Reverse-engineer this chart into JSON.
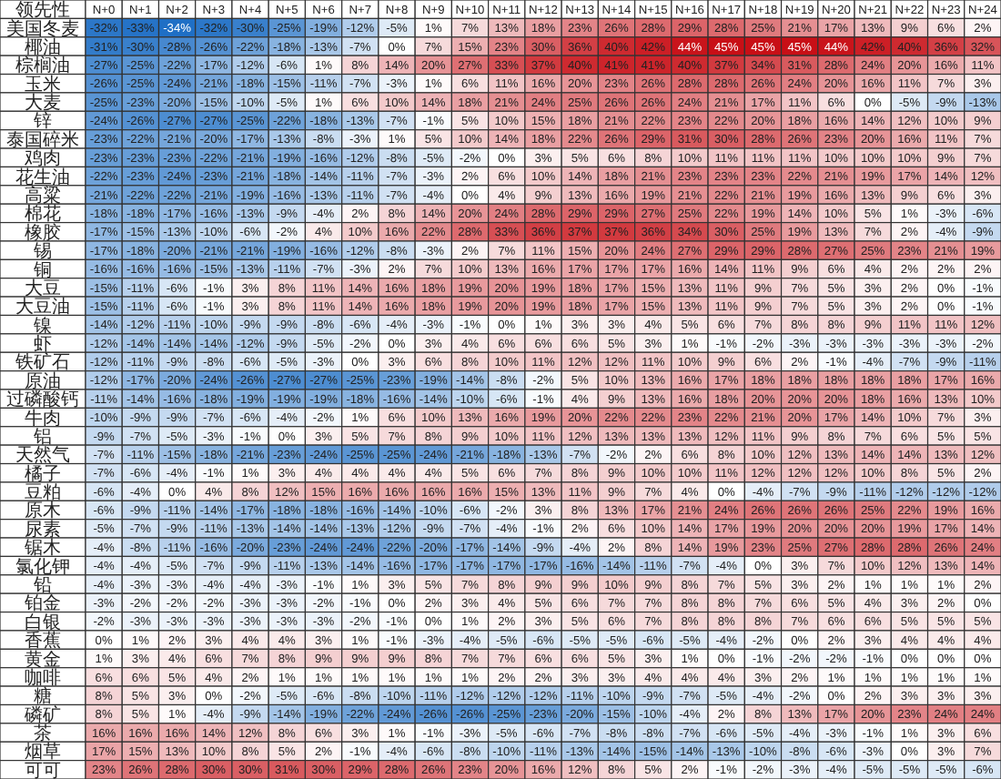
{
  "chart_data": {
    "type": "heatmap",
    "ylabel": "领先性",
    "categories": [
      "N+0",
      "N+1",
      "N+2",
      "N+3",
      "N+4",
      "N+5",
      "N+6",
      "N+7",
      "N+8",
      "N+9",
      "N+10",
      "N+11",
      "N+12",
      "N+13",
      "N+14",
      "N+15",
      "N+16",
      "N+17",
      "N+18",
      "N+19",
      "N+20",
      "N+21",
      "N+22",
      "N+23",
      "N+24"
    ],
    "y_categories": [
      "美国冬麦",
      "椰油",
      "棕榈油",
      "玉米",
      "大麦",
      "锌",
      "泰国碎米",
      "鸡肉",
      "花生油",
      "高粱",
      "棉花",
      "橡胶",
      "锡",
      "铜",
      "大豆",
      "大豆油",
      "镍",
      "虾",
      "铁矿石",
      "原油",
      "过磷酸钙",
      "牛肉",
      "铝",
      "天然气",
      "橘子",
      "豆粕",
      "原木",
      "尿素",
      "锯木",
      "氯化钾",
      "铅",
      "铂金",
      "白银",
      "香蕉",
      "黄金",
      "咖啡",
      "糖",
      "磷矿",
      "茶",
      "烟草",
      "可可"
    ],
    "cells": [
      [
        -32,
        -33,
        -34,
        -32,
        -30,
        -25,
        -19,
        -12,
        -5,
        1,
        7,
        13,
        18,
        23,
        26,
        28,
        29,
        28,
        25,
        21,
        17,
        13,
        9,
        6,
        2
      ],
      [
        -31,
        -30,
        -28,
        -26,
        -22,
        -18,
        -13,
        -7,
        0,
        7,
        15,
        23,
        30,
        36,
        40,
        42,
        44,
        45,
        45,
        45,
        44,
        42,
        40,
        36,
        32
      ],
      [
        -27,
        -25,
        -22,
        -17,
        -12,
        -6,
        1,
        8,
        14,
        20,
        27,
        33,
        37,
        40,
        41,
        41,
        40,
        37,
        34,
        31,
        28,
        24,
        20,
        16,
        11
      ],
      [
        -26,
        -25,
        -24,
        -21,
        -18,
        -15,
        -11,
        -7,
        -3,
        1,
        6,
        11,
        16,
        20,
        23,
        26,
        28,
        28,
        26,
        24,
        20,
        16,
        11,
        7,
        3
      ],
      [
        -25,
        -23,
        -20,
        -15,
        -10,
        -5,
        1,
        6,
        10,
        14,
        18,
        21,
        24,
        25,
        26,
        26,
        24,
        21,
        17,
        11,
        6,
        0,
        -5,
        -9,
        -13
      ],
      [
        -24,
        -26,
        -27,
        -27,
        -25,
        -22,
        -18,
        -13,
        -7,
        -1,
        5,
        10,
        15,
        18,
        21,
        22,
        23,
        22,
        20,
        18,
        16,
        14,
        12,
        10,
        9
      ],
      [
        -23,
        -22,
        -21,
        -20,
        -17,
        -13,
        -8,
        -3,
        1,
        5,
        10,
        14,
        18,
        22,
        26,
        29,
        31,
        30,
        28,
        26,
        23,
        20,
        16,
        11,
        7
      ],
      [
        -23,
        -23,
        -23,
        -22,
        -21,
        -19,
        -16,
        -12,
        -8,
        -5,
        -2,
        0,
        3,
        5,
        6,
        8,
        10,
        11,
        11,
        11,
        10,
        10,
        10,
        9,
        7
      ],
      [
        -22,
        -23,
        -24,
        -23,
        -21,
        -18,
        -14,
        -11,
        -7,
        -3,
        2,
        6,
        10,
        14,
        18,
        21,
        23,
        23,
        23,
        22,
        21,
        19,
        17,
        14,
        12
      ],
      [
        -21,
        -22,
        -22,
        -21,
        -19,
        -16,
        -13,
        -11,
        -7,
        -4,
        0,
        4,
        9,
        13,
        16,
        19,
        21,
        22,
        21,
        19,
        16,
        13,
        9,
        6,
        3
      ],
      [
        -18,
        -18,
        -17,
        -16,
        -13,
        -9,
        -4,
        2,
        8,
        14,
        20,
        24,
        28,
        29,
        29,
        27,
        25,
        22,
        19,
        14,
        10,
        5,
        1,
        -3,
        -6
      ],
      [
        -17,
        -15,
        -13,
        -10,
        -6,
        -2,
        4,
        10,
        16,
        22,
        28,
        33,
        36,
        37,
        37,
        36,
        34,
        30,
        25,
        19,
        13,
        7,
        2,
        -4,
        -9
      ],
      [
        -17,
        -18,
        -20,
        -21,
        -21,
        -19,
        -16,
        -12,
        -8,
        -3,
        2,
        7,
        11,
        15,
        20,
        24,
        27,
        29,
        29,
        28,
        27,
        25,
        23,
        21,
        19
      ],
      [
        -16,
        -16,
        -16,
        -15,
        -13,
        -11,
        -7,
        -3,
        2,
        7,
        10,
        13,
        16,
        17,
        17,
        17,
        16,
        14,
        11,
        9,
        6,
        4,
        2,
        2,
        2
      ],
      [
        -15,
        -11,
        -6,
        -1,
        3,
        8,
        11,
        14,
        16,
        18,
        19,
        20,
        19,
        18,
        17,
        15,
        13,
        11,
        9,
        7,
        5,
        3,
        2,
        0,
        -1
      ],
      [
        -15,
        -11,
        -6,
        -1,
        3,
        8,
        11,
        14,
        16,
        18,
        19,
        20,
        19,
        18,
        17,
        15,
        13,
        11,
        9,
        7,
        5,
        3,
        2,
        0,
        -1
      ],
      [
        -14,
        -12,
        -11,
        -10,
        -9,
        -9,
        -8,
        -6,
        -4,
        -3,
        -1,
        0,
        1,
        3,
        3,
        4,
        5,
        6,
        7,
        8,
        8,
        9,
        11,
        11,
        12
      ],
      [
        -12,
        -14,
        -14,
        -14,
        -12,
        -9,
        -5,
        -2,
        0,
        3,
        4,
        6,
        6,
        6,
        5,
        3,
        1,
        -1,
        -2,
        -3,
        -3,
        -3,
        -3,
        -3,
        -2
      ],
      [
        -12,
        -11,
        -9,
        -8,
        -6,
        -5,
        -3,
        0,
        3,
        6,
        8,
        10,
        11,
        12,
        12,
        11,
        10,
        9,
        6,
        2,
        -1,
        -4,
        -7,
        -9,
        -11
      ],
      [
        -12,
        -17,
        -20,
        -24,
        -26,
        -27,
        -27,
        -25,
        -23,
        -19,
        -14,
        -8,
        -2,
        5,
        10,
        13,
        16,
        17,
        18,
        18,
        18,
        18,
        18,
        17,
        16
      ],
      [
        -11,
        -14,
        -16,
        -18,
        -19,
        -19,
        -19,
        -18,
        -16,
        -14,
        -10,
        -6,
        -1,
        4,
        9,
        13,
        16,
        18,
        20,
        20,
        20,
        18,
        16,
        13,
        10
      ],
      [
        -10,
        -9,
        -9,
        -7,
        -6,
        -4,
        -2,
        1,
        6,
        10,
        13,
        16,
        19,
        20,
        22,
        22,
        23,
        22,
        21,
        20,
        17,
        14,
        10,
        7,
        3
      ],
      [
        -9,
        -7,
        -5,
        -3,
        -1,
        0,
        3,
        5,
        7,
        8,
        9,
        10,
        11,
        12,
        13,
        13,
        13,
        12,
        11,
        9,
        8,
        7,
        6,
        5,
        5
      ],
      [
        -7,
        -11,
        -15,
        -18,
        -21,
        -23,
        -24,
        -25,
        -25,
        -24,
        -21,
        -18,
        -13,
        -7,
        -2,
        2,
        6,
        8,
        10,
        12,
        13,
        14,
        14,
        13,
        12
      ],
      [
        -7,
        -6,
        -4,
        -1,
        1,
        3,
        4,
        4,
        4,
        4,
        5,
        6,
        7,
        8,
        9,
        10,
        10,
        11,
        12,
        12,
        12,
        10,
        8,
        5,
        2
      ],
      [
        -6,
        -4,
        0,
        4,
        8,
        12,
        15,
        16,
        16,
        16,
        16,
        15,
        13,
        11,
        9,
        7,
        4,
        0,
        -4,
        -7,
        -9,
        -11,
        -12,
        -12,
        -12
      ],
      [
        -6,
        -9,
        -11,
        -14,
        -17,
        -18,
        -18,
        -16,
        -14,
        -10,
        -6,
        -2,
        3,
        8,
        13,
        17,
        21,
        24,
        26,
        26,
        26,
        25,
        22,
        19,
        16
      ],
      [
        -5,
        -7,
        -9,
        -11,
        -13,
        -14,
        -14,
        -13,
        -12,
        -9,
        -7,
        -4,
        -1,
        2,
        6,
        10,
        14,
        17,
        19,
        20,
        20,
        20,
        19,
        17,
        14
      ],
      [
        -4,
        -8,
        -11,
        -16,
        -20,
        -23,
        -24,
        -24,
        -22,
        -20,
        -17,
        -14,
        -9,
        -4,
        2,
        8,
        14,
        19,
        23,
        25,
        27,
        28,
        28,
        26,
        24
      ],
      [
        -4,
        -4,
        -5,
        -7,
        -9,
        -11,
        -13,
        -14,
        -16,
        -17,
        -17,
        -17,
        -17,
        -16,
        -14,
        -11,
        -7,
        -4,
        0,
        3,
        7,
        10,
        12,
        13,
        14
      ],
      [
        -4,
        -3,
        -3,
        -4,
        -4,
        -3,
        -1,
        1,
        3,
        5,
        7,
        8,
        9,
        9,
        10,
        9,
        8,
        7,
        5,
        3,
        2,
        1,
        1,
        1,
        2
      ],
      [
        -3,
        -2,
        -2,
        -2,
        -3,
        -3,
        -2,
        -1,
        0,
        2,
        3,
        4,
        5,
        6,
        7,
        7,
        8,
        8,
        7,
        6,
        5,
        4,
        3,
        2,
        0
      ],
      [
        -2,
        -3,
        -3,
        -3,
        -3,
        -3,
        -3,
        -2,
        -1,
        0,
        1,
        2,
        3,
        5,
        6,
        7,
        8,
        8,
        8,
        7,
        6,
        6,
        5,
        5,
        5
      ],
      [
        0,
        1,
        2,
        3,
        4,
        4,
        3,
        1,
        -1,
        -3,
        -4,
        -5,
        -6,
        -5,
        -5,
        -6,
        -5,
        -4,
        -2,
        0,
        2,
        3,
        4,
        4,
        4
      ],
      [
        1,
        3,
        4,
        6,
        7,
        8,
        9,
        9,
        9,
        8,
        7,
        7,
        6,
        6,
        5,
        3,
        1,
        0,
        -1,
        -2,
        -2,
        -1,
        0,
        0,
        0
      ],
      [
        6,
        6,
        5,
        4,
        2,
        1,
        1,
        1,
        1,
        1,
        1,
        2,
        2,
        3,
        3,
        4,
        4,
        4,
        3,
        2,
        1,
        1,
        1,
        1,
        1
      ],
      [
        8,
        5,
        3,
        0,
        -2,
        -5,
        -6,
        -8,
        -10,
        -11,
        -12,
        -12,
        -12,
        -11,
        -10,
        -9,
        -7,
        -5,
        -4,
        -2,
        0,
        2,
        3,
        3,
        3
      ],
      [
        8,
        5,
        1,
        -4,
        -9,
        -14,
        -19,
        -22,
        -24,
        -26,
        -26,
        -25,
        -23,
        -20,
        -15,
        -10,
        -4,
        2,
        8,
        13,
        17,
        20,
        23,
        24,
        24
      ],
      [
        16,
        16,
        16,
        14,
        12,
        8,
        6,
        3,
        1,
        -1,
        -3,
        -5,
        -6,
        -7,
        -8,
        -8,
        -7,
        -6,
        -5,
        -4,
        -3,
        -1,
        1,
        3,
        6
      ],
      [
        17,
        15,
        13,
        10,
        8,
        5,
        2,
        -1,
        -4,
        -6,
        -8,
        -10,
        -11,
        -13,
        -14,
        -15,
        -14,
        -13,
        -10,
        -8,
        -6,
        -3,
        0,
        3,
        7
      ],
      [
        23,
        26,
        28,
        30,
        30,
        31,
        30,
        29,
        28,
        26,
        23,
        20,
        16,
        12,
        8,
        5,
        2,
        -1,
        -2,
        -3,
        -4,
        -5,
        -5,
        -5,
        -6
      ]
    ],
    "cell_labels": [
      [
        "-32%",
        "-33%",
        "-34%",
        "-32%",
        "-30%",
        "-25%",
        "-19%",
        "-12%",
        "-5%",
        "1%",
        "7%",
        "13%",
        "18%",
        "23%",
        "26%",
        "28%",
        "29%",
        "28%",
        "25%",
        "21%",
        "17%",
        "13%",
        "9%",
        "6%",
        "2%"
      ],
      [
        "-31%",
        "-30%",
        "-28%",
        "-26%",
        "-22%",
        "-18%",
        "-13%",
        "-7%",
        "0%",
        "7%",
        "15%",
        "23%",
        "30%",
        "36%",
        "40%",
        "42%",
        "44%",
        "45%",
        "45%",
        "45%",
        "44%",
        "42%",
        "40%",
        "36%",
        "32%"
      ],
      [
        "-27%",
        "-25%",
        "-22%",
        "-17%",
        "-12%",
        "-6%",
        "1%",
        "8%",
        "14%",
        "20%",
        "27%",
        "33%",
        "37%",
        "40%",
        "41%",
        "41%",
        "40%",
        "37%",
        "34%",
        "31%",
        "28%",
        "24%",
        "20%",
        "16%",
        "11%"
      ],
      [
        "-26%",
        "-25%",
        "-24%",
        "-21%",
        "-18%",
        "-15%",
        "-11%",
        "-7%",
        "-3%",
        "1%",
        "6%",
        "11%",
        "16%",
        "20%",
        "23%",
        "26%",
        "28%",
        "28%",
        "26%",
        "24%",
        "20%",
        "16%",
        "11%",
        "7%",
        "3%"
      ],
      [
        "-25%",
        "-23%",
        "-20%",
        "-15%",
        "-10%",
        "-5%",
        "1%",
        "6%",
        "10%",
        "14%",
        "18%",
        "21%",
        "24%",
        "25%",
        "26%",
        "26%",
        "24%",
        "21%",
        "17%",
        "11%",
        "6%",
        "0%",
        "-5%",
        "-9%",
        "-13%"
      ],
      [
        "-24%",
        "-26%",
        "-27%",
        "-27%",
        "-25%",
        "-22%",
        "-18%",
        "-13%",
        "-7%",
        "-1%",
        "5%",
        "10%",
        "15%",
        "18%",
        "21%",
        "22%",
        "23%",
        "22%",
        "20%",
        "18%",
        "16%",
        "14%",
        "12%",
        "10%",
        "9%"
      ],
      [
        "-23%",
        "-22%",
        "-21%",
        "-20%",
        "-17%",
        "-13%",
        "-8%",
        "-3%",
        "1%",
        "5%",
        "10%",
        "14%",
        "18%",
        "22%",
        "26%",
        "29%",
        "31%",
        "30%",
        "28%",
        "26%",
        "23%",
        "20%",
        "16%",
        "11%",
        "7%"
      ],
      [
        "-23%",
        "-23%",
        "-23%",
        "-22%",
        "-21%",
        "-19%",
        "-16%",
        "-12%",
        "-8%",
        "-5%",
        "-2%",
        "0%",
        "3%",
        "5%",
        "6%",
        "8%",
        "10%",
        "11%",
        "11%",
        "11%",
        "10%",
        "10%",
        "10%",
        "9%",
        "7%"
      ],
      [
        "-22%",
        "-23%",
        "-24%",
        "-23%",
        "-21%",
        "-18%",
        "-14%",
        "-11%",
        "-7%",
        "-3%",
        "2%",
        "6%",
        "10%",
        "14%",
        "18%",
        "21%",
        "23%",
        "23%",
        "23%",
        "22%",
        "21%",
        "19%",
        "17%",
        "14%",
        "12%"
      ],
      [
        "-21%",
        "-22%",
        "-22%",
        "-21%",
        "-19%",
        "-16%",
        "-13%",
        "-11%",
        "-7%",
        "-4%",
        "0%",
        "4%",
        "9%",
        "13%",
        "16%",
        "19%",
        "21%",
        "22%",
        "21%",
        "19%",
        "16%",
        "13%",
        "9%",
        "6%",
        "3%"
      ],
      [
        "-18%",
        "-18%",
        "-17%",
        "-16%",
        "-13%",
        "-9%",
        "-4%",
        "2%",
        "8%",
        "14%",
        "20%",
        "24%",
        "28%",
        "29%",
        "29%",
        "27%",
        "25%",
        "22%",
        "19%",
        "14%",
        "10%",
        "5%",
        "1%",
        "-3%",
        "-6%"
      ],
      [
        "-17%",
        "-15%",
        "-13%",
        "-10%",
        "-6%",
        "-2%",
        "4%",
        "10%",
        "16%",
        "22%",
        "28%",
        "33%",
        "36%",
        "37%",
        "37%",
        "36%",
        "34%",
        "30%",
        "25%",
        "19%",
        "13%",
        "7%",
        "2%",
        "-4%",
        "-9%"
      ],
      [
        "-17%",
        "-18%",
        "-20%",
        "-21%",
        "-21%",
        "-19%",
        "-16%",
        "-12%",
        "-8%",
        "-3%",
        "2%",
        "7%",
        "11%",
        "15%",
        "20%",
        "24%",
        "27%",
        "29%",
        "29%",
        "28%",
        "27%",
        "25%",
        "23%",
        "21%",
        "19%"
      ],
      [
        "-16%",
        "-16%",
        "-16%",
        "-15%",
        "-13%",
        "-11%",
        "-7%",
        "-3%",
        "2%",
        "7%",
        "10%",
        "13%",
        "16%",
        "17%",
        "17%",
        "17%",
        "16%",
        "14%",
        "11%",
        "9%",
        "6%",
        "4%",
        "2%",
        "2%",
        "2%"
      ],
      [
        "-15%",
        "-11%",
        "-6%",
        "-1%",
        "3%",
        "8%",
        "11%",
        "14%",
        "16%",
        "18%",
        "19%",
        "20%",
        "19%",
        "18%",
        "17%",
        "15%",
        "13%",
        "11%",
        "9%",
        "7%",
        "5%",
        "3%",
        "2%",
        "0%",
        "-1%"
      ],
      [
        "-15%",
        "-11%",
        "-6%",
        "-1%",
        "3%",
        "8%",
        "11%",
        "14%",
        "16%",
        "18%",
        "19%",
        "20%",
        "19%",
        "18%",
        "17%",
        "15%",
        "13%",
        "11%",
        "9%",
        "7%",
        "5%",
        "3%",
        "2%",
        "0%",
        "-1%"
      ],
      [
        "-14%",
        "-12%",
        "-11%",
        "-10%",
        "-9%",
        "-9%",
        "-8%",
        "-6%",
        "-4%",
        "-3%",
        "-1%",
        "0%",
        "1%",
        "3%",
        "3%",
        "4%",
        "5%",
        "6%",
        "7%",
        "8%",
        "8%",
        "9%",
        "11%",
        "11%",
        "12%"
      ],
      [
        "-12%",
        "-14%",
        "-14%",
        "-14%",
        "-12%",
        "-9%",
        "-5%",
        "-2%",
        "0%",
        "3%",
        "4%",
        "6%",
        "6%",
        "6%",
        "5%",
        "3%",
        "1%",
        "-1%",
        "-2%",
        "-3%",
        "-3%",
        "-3%",
        "-3%",
        "-3%",
        "-2%"
      ],
      [
        "-12%",
        "-11%",
        "-9%",
        "-8%",
        "-6%",
        "-5%",
        "-3%",
        "0%",
        "3%",
        "6%",
        "8%",
        "10%",
        "11%",
        "12%",
        "12%",
        "11%",
        "10%",
        "9%",
        "6%",
        "2%",
        "-1%",
        "-4%",
        "-7%",
        "-9%",
        "-11%"
      ],
      [
        "-12%",
        "-17%",
        "-20%",
        "-24%",
        "-26%",
        "-27%",
        "-27%",
        "-25%",
        "-23%",
        "-19%",
        "-14%",
        "-8%",
        "-2%",
        "5%",
        "10%",
        "13%",
        "16%",
        "17%",
        "18%",
        "18%",
        "18%",
        "18%",
        "18%",
        "17%",
        "16%"
      ],
      [
        "-11%",
        "-14%",
        "-16%",
        "-18%",
        "-19%",
        "-19%",
        "-19%",
        "-18%",
        "-16%",
        "-14%",
        "-10%",
        "-6%",
        "-1%",
        "4%",
        "9%",
        "13%",
        "16%",
        "18%",
        "20%",
        "20%",
        "20%",
        "18%",
        "16%",
        "13%",
        "10%"
      ],
      [
        "-10%",
        "-9%",
        "-9%",
        "-7%",
        "-6%",
        "-4%",
        "-2%",
        "1%",
        "6%",
        "10%",
        "13%",
        "16%",
        "19%",
        "20%",
        "22%",
        "22%",
        "23%",
        "22%",
        "21%",
        "20%",
        "17%",
        "14%",
        "10%",
        "7%",
        "3%"
      ],
      [
        "-9%",
        "-7%",
        "-5%",
        "-3%",
        "-1%",
        "0%",
        "3%",
        "5%",
        "7%",
        "8%",
        "9%",
        "10%",
        "11%",
        "12%",
        "13%",
        "13%",
        "13%",
        "12%",
        "11%",
        "9%",
        "8%",
        "7%",
        "6%",
        "5%",
        "5%"
      ],
      [
        "-7%",
        "-11%",
        "-15%",
        "-18%",
        "-21%",
        "-23%",
        "-24%",
        "-25%",
        "-25%",
        "-24%",
        "-21%",
        "-18%",
        "-13%",
        "-7%",
        "-2%",
        "2%",
        "6%",
        "8%",
        "10%",
        "12%",
        "13%",
        "14%",
        "14%",
        "13%",
        "12%"
      ],
      [
        "-7%",
        "-6%",
        "-4%",
        "-1%",
        "1%",
        "3%",
        "4%",
        "4%",
        "4%",
        "4%",
        "5%",
        "6%",
        "7%",
        "8%",
        "9%",
        "10%",
        "10%",
        "11%",
        "12%",
        "12%",
        "12%",
        "10%",
        "8%",
        "5%",
        "2%"
      ],
      [
        "-6%",
        "-4%",
        "0%",
        "4%",
        "8%",
        "12%",
        "15%",
        "16%",
        "16%",
        "16%",
        "16%",
        "15%",
        "13%",
        "11%",
        "9%",
        "7%",
        "4%",
        "0%",
        "-4%",
        "-7%",
        "-9%",
        "-11%",
        "-12%",
        "-12%",
        "-12%"
      ],
      [
        "-6%",
        "-9%",
        "-11%",
        "-14%",
        "-17%",
        "-18%",
        "-18%",
        "-16%",
        "-14%",
        "-10%",
        "-6%",
        "-2%",
        "3%",
        "8%",
        "13%",
        "17%",
        "21%",
        "24%",
        "26%",
        "26%",
        "26%",
        "25%",
        "22%",
        "19%",
        "16%"
      ],
      [
        "-5%",
        "-7%",
        "-9%",
        "-11%",
        "-13%",
        "-14%",
        "-14%",
        "-13%",
        "-12%",
        "-9%",
        "-7%",
        "-4%",
        "-1%",
        "2%",
        "6%",
        "10%",
        "14%",
        "17%",
        "19%",
        "20%",
        "20%",
        "20%",
        "19%",
        "17%",
        "14%"
      ],
      [
        "-4%",
        "-8%",
        "-11%",
        "-16%",
        "-20%",
        "-23%",
        "-24%",
        "-24%",
        "-22%",
        "-20%",
        "-17%",
        "-14%",
        "-9%",
        "-4%",
        "2%",
        "8%",
        "14%",
        "19%",
        "23%",
        "25%",
        "27%",
        "28%",
        "28%",
        "26%",
        "24%"
      ],
      [
        "-4%",
        "-4%",
        "-5%",
        "-7%",
        "-9%",
        "-11%",
        "-13%",
        "-14%",
        "-16%",
        "-17%",
        "-17%",
        "-17%",
        "-17%",
        "-16%",
        "-14%",
        "-11%",
        "-7%",
        "-4%",
        "0%",
        "3%",
        "7%",
        "10%",
        "12%",
        "13%",
        "14%"
      ],
      [
        "-4%",
        "-3%",
        "-3%",
        "-4%",
        "-4%",
        "-3%",
        "-1%",
        "1%",
        "3%",
        "5%",
        "7%",
        "8%",
        "9%",
        "9%",
        "10%",
        "9%",
        "8%",
        "7%",
        "5%",
        "3%",
        "2%",
        "1%",
        "1%",
        "1%",
        "2%"
      ],
      [
        "-3%",
        "-2%",
        "-2%",
        "-2%",
        "-3%",
        "-3%",
        "-2%",
        "-1%",
        "0%",
        "2%",
        "3%",
        "4%",
        "5%",
        "6%",
        "7%",
        "7%",
        "8%",
        "8%",
        "7%",
        "6%",
        "5%",
        "4%",
        "3%",
        "2%",
        "0%"
      ],
      [
        "-2%",
        "-3%",
        "-3%",
        "-3%",
        "-3%",
        "-3%",
        "-3%",
        "-2%",
        "-1%",
        "0%",
        "1%",
        "2%",
        "3%",
        "5%",
        "6%",
        "7%",
        "8%",
        "8%",
        "8%",
        "7%",
        "6%",
        "6%",
        "5%",
        "5%",
        "5%"
      ],
      [
        "0%",
        "1%",
        "2%",
        "3%",
        "4%",
        "4%",
        "3%",
        "1%",
        "-1%",
        "-3%",
        "-4%",
        "-5%",
        "-6%",
        "-5%",
        "-5%",
        "-6%",
        "-5%",
        "-4%",
        "-2%",
        "0%",
        "2%",
        "3%",
        "4%",
        "4%",
        "4%"
      ],
      [
        "1%",
        "3%",
        "4%",
        "6%",
        "7%",
        "8%",
        "9%",
        "9%",
        "9%",
        "8%",
        "7%",
        "7%",
        "6%",
        "6%",
        "5%",
        "3%",
        "1%",
        "0%",
        "-1%",
        "-2%",
        "-2%",
        "-1%",
        "0%",
        "0%",
        "0%"
      ],
      [
        "6%",
        "6%",
        "5%",
        "4%",
        "2%",
        "1%",
        "1%",
        "1%",
        "1%",
        "1%",
        "1%",
        "2%",
        "2%",
        "3%",
        "3%",
        "4%",
        "4%",
        "4%",
        "3%",
        "2%",
        "1%",
        "1%",
        "1%",
        "1%",
        "1%"
      ],
      [
        "8%",
        "5%",
        "3%",
        "0%",
        "-2%",
        "-5%",
        "-6%",
        "-8%",
        "-10%",
        "-11%",
        "-12%",
        "-12%",
        "-12%",
        "-11%",
        "-10%",
        "-9%",
        "-7%",
        "-5%",
        "-4%",
        "-2%",
        "0%",
        "2%",
        "3%",
        "3%",
        "3%"
      ],
      [
        "8%",
        "5%",
        "1%",
        "-4%",
        "-9%",
        "-14%",
        "-19%",
        "-22%",
        "-24%",
        "-26%",
        "-26%",
        "-25%",
        "-23%",
        "-20%",
        "-15%",
        "-10%",
        "-4%",
        "2%",
        "8%",
        "13%",
        "17%",
        "20%",
        "23%",
        "24%",
        "24%"
      ],
      [
        "16%",
        "16%",
        "16%",
        "14%",
        "12%",
        "8%",
        "6%",
        "3%",
        "1%",
        "-1%",
        "-3%",
        "-5%",
        "-6%",
        "-7%",
        "-8%",
        "-8%",
        "-7%",
        "-6%",
        "-5%",
        "-4%",
        "-3%",
        "-1%",
        "1%",
        "3%",
        "6%"
      ],
      [
        "17%",
        "15%",
        "13%",
        "10%",
        "8%",
        "5%",
        "2%",
        "-1%",
        "-4%",
        "-6%",
        "-8%",
        "-10%",
        "-11%",
        "-13%",
        "-14%",
        "-15%",
        "-14%",
        "-13%",
        "-10%",
        "-8%",
        "-6%",
        "-3%",
        "0%",
        "3%",
        "7%"
      ],
      [
        "23%",
        "26%",
        "28%",
        "30%",
        "30%",
        "31%",
        "30%",
        "29%",
        "28%",
        "26%",
        "23%",
        "20%",
        "16%",
        "12%",
        "8%",
        "5%",
        "2%",
        "-1%",
        "-2%",
        "-3%",
        "-4%",
        "-5%",
        "-5%",
        "-5%",
        "-6%"
      ]
    ]
  }
}
